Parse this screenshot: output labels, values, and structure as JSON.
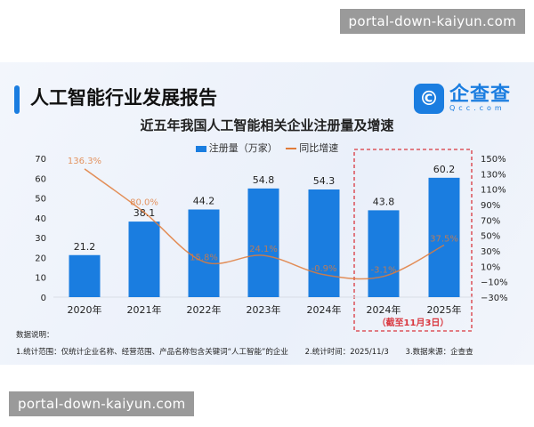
{
  "watermarks": [
    "portal-down-kaiyun.com",
    "portal-down-kaiyun.com"
  ],
  "header": {
    "title": "人工智能行业发展报告",
    "logo_cn": "企查查",
    "logo_en": "Qcc.com",
    "logo_glyph": "©"
  },
  "chart_data": {
    "type": "bar",
    "title": "近五年我国人工智能相关企业注册量及增速",
    "categories": [
      "2020年",
      "2021年",
      "2022年",
      "2023年",
      "2024年",
      "2024年",
      "2025年"
    ],
    "series": [
      {
        "name": "注册量（万家）",
        "type": "bar",
        "axis": "left",
        "values": [
          21.2,
          38.1,
          44.2,
          54.8,
          54.3,
          43.8,
          60.2
        ],
        "labels": [
          "21.2",
          "38.1",
          "44.2",
          "54.8",
          "54.3",
          "43.8",
          "60.2"
        ]
      },
      {
        "name": "同比增速",
        "type": "line",
        "axis": "right",
        "values": [
          136.3,
          80.0,
          15.8,
          24.1,
          -0.9,
          -3.1,
          37.5
        ],
        "labels": [
          "136.3%",
          "80.0%",
          "15.8%",
          "24.1%",
          "-0.9%",
          "-3.1%",
          "37.5%"
        ]
      }
    ],
    "left_axis": {
      "ylim": [
        0,
        70
      ],
      "ticks": [
        "0",
        "10",
        "20",
        "30",
        "40",
        "50",
        "60",
        "70"
      ]
    },
    "right_axis": {
      "ylim": [
        -30,
        150
      ],
      "ticks": [
        "-30%",
        "-10%",
        "10%",
        "30%",
        "50%",
        "70%",
        "90%",
        "110%",
        "130%",
        "150%"
      ]
    },
    "highlight_note": "（截至11月3日）",
    "legend_position": "top",
    "colors": {
      "bar": "#1a7de0",
      "line": "#e07b39",
      "highlight_box": "#d9363e"
    }
  },
  "notes": {
    "heading": "数据说明：",
    "items": [
      "1.统计范围：仅统计企业名称、经营范围、产品名称包含关键词“人工智能”的企业",
      "2.统计时间：2025/11/3",
      "3.数据来源：企查查"
    ]
  }
}
